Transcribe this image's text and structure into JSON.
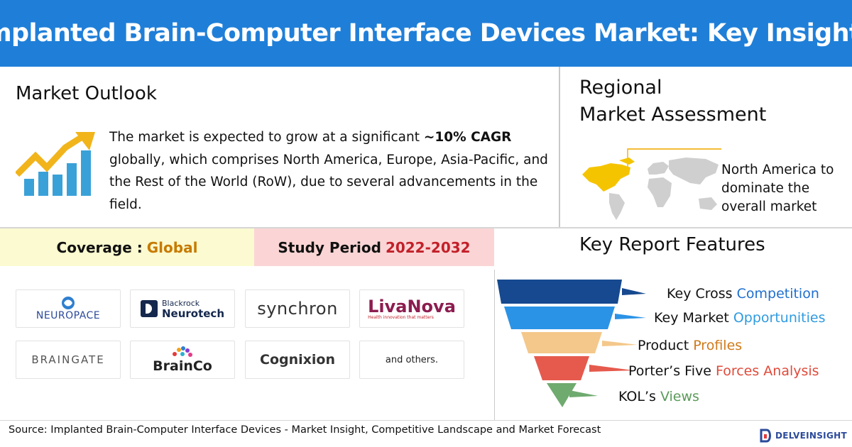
{
  "header": {
    "title": "Implanted Brain-Computer Interface Devices Market: Key Insights"
  },
  "outlook": {
    "title": "Market Outlook",
    "text_before": "The market is expected to grow at a significant ",
    "highlight": "~10% CAGR",
    "text_after": " globally, which comprises North America, Europe, Asia-Pacific, and the Rest of the World (RoW), due to several advancements in the field.",
    "icon": "growth-chart-icon"
  },
  "regional": {
    "title_line1": "Regional",
    "title_line2": "Market Assessment",
    "note": "North America to dominate the overall market",
    "icon": "world-map-icon"
  },
  "coverage": {
    "label": "Coverage : ",
    "value": "Global"
  },
  "study": {
    "label": "Study Period ",
    "value": "2022-2032"
  },
  "key_features": {
    "title": "Key Report Features",
    "items": [
      {
        "pre": "Key Cross ",
        "accent": "Competition",
        "color": "#1f6fcf"
      },
      {
        "pre": "Key Market ",
        "accent": "Opportunities",
        "color": "#2f9be0"
      },
      {
        "pre": "Product ",
        "accent": "Profiles",
        "color": "#d07a1a"
      },
      {
        "pre": "Porter’s Five ",
        "accent": "Forces Analysis",
        "color": "#e04a3a"
      },
      {
        "pre": "KOL’s ",
        "accent": "Views",
        "color": "#5a9a5a"
      }
    ]
  },
  "logos": {
    "neuropace": "NEUROPACE",
    "blackrock_line1": "Blackrock",
    "blackrock_line2": "Neurotech",
    "synchron": "synchron",
    "livanova": "LivaNova",
    "livanova_tagline": "Health innovation that matters",
    "braingate": "BRAINGATE",
    "brainco": "BrainCo",
    "cognixion": "Cognixion",
    "others": "and others."
  },
  "footer": {
    "source": "Source: Implanted Brain-Computer Interface Devices - Market Insight, Competitive Landscape and Market Forecast",
    "brand": "DELVEINSIGHT"
  },
  "colors": {
    "header_bg": "#1f7fd8",
    "coverage_bg": "#fbfad0",
    "study_bg": "#fbd5d5",
    "coverage_value": "#c77a00",
    "study_value": "#c2202a"
  }
}
